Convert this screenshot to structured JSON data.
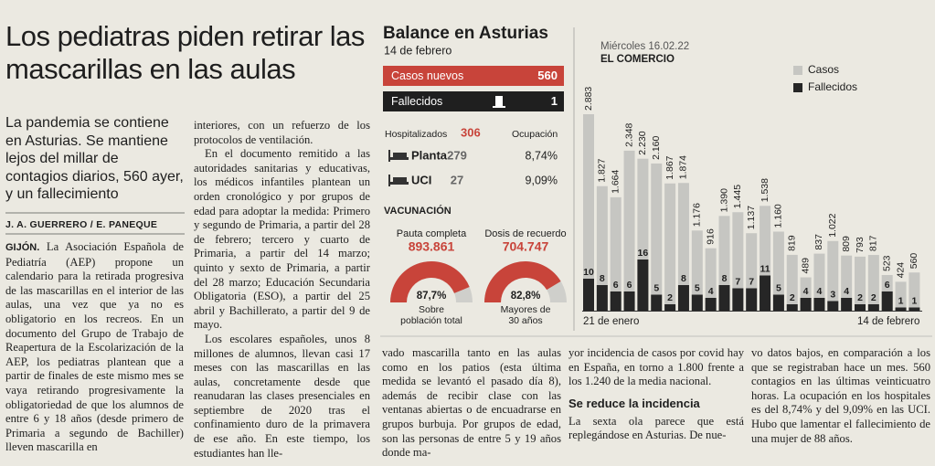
{
  "masthead": {
    "date": "Miércoles 16.02.22",
    "paper": "EL COMERCIO"
  },
  "article": {
    "headline": "Los pediatras piden retirar las mascarillas en las aulas",
    "subhead": "La pandemia se contiene en Asturias. Se mantiene lejos del millar de contagios diarios, 560 ayer, y un fallecimiento",
    "byline": "J. A. GUERRERO / E. PANEQUE",
    "columns": [
      [
        {
          "lead": "GIJÓN.",
          "p": "La Asociación Española de Pediatría (AEP) propone un calendario para la retirada progresiva de las mascarillas en el interior de las aulas, una vez que ya no es obligatorio en los recreos. En un documento del Grupo de Trabajo de Reapertura de la Escolarización de la AEP, los pediatras plantean que a partir de finales de este mismo mes se vaya retirando progresivamente la obligatoriedad de que los alumnos de entre 6 y 18 años (desde primero de Primaria a segundo de Bachiller) lleven mascarilla en"
        }
      ],
      [
        {
          "p": "interiores, con un refuerzo de los protocolos de ventilación."
        },
        {
          "p": "En el documento remitido a las autoridades sanitarias y educativas, los médicos infantiles plantean un orden cronológico y por grupos de edad para adoptar la medida: Primero y segundo de Primaria, a partir del 28 de febrero; tercero y cuarto de Primaria, a partir del 14 marzo; quinto y sexto de Primaria, a partir del 28 marzo; Educación Secundaria Obligatoria (ESO), a partir del 25 abril y Bachillerato, a partir del 9 de mayo."
        },
        {
          "p": "Los escolares españoles, unos 8 millones de alumnos, llevan casi 17 meses con las mascarillas en las aulas, concretamente desde que reanudaran las clases presenciales en septiembre de 2020 tras el confinamiento duro de la primavera de ese año. En este tiempo, los estudiantes han lle-"
        }
      ],
      [
        {
          "p": "vado mascarilla tanto en las aulas como en los patios (esta última medida se levantó el pasado día 8), además de recibir clase con las ventanas abiertas o de encuadrarse en grupos burbuja. Por grupos de edad, son las personas de entre 5 y 19 años donde ma-"
        }
      ],
      [
        {
          "p": "yor incidencia de casos por covid hay en España, en torno a 1.800 frente a los 1.240 de la media nacional."
        },
        {
          "h": "Se reduce la incidencia"
        },
        {
          "p": "La sexta ola parece que está replegándose en Asturias. De nue-"
        }
      ],
      [
        {
          "p": "vo datos bajos, en comparación a los que se registraban hace un mes. 560 contagios en las últimas veinticuatro horas. La ocupación en los hospitales es del 8,74% y del 9,09% en las UCI. Hubo que lamentar el fallecimiento de una mujer de 88 años."
        }
      ]
    ]
  },
  "infographic": {
    "title": "Balance en Asturias",
    "date": "14 de febrero",
    "new_cases": {
      "label": "Casos nuevos",
      "value": "560"
    },
    "deaths": {
      "label": "Fallecidos",
      "value": "1"
    },
    "hospital": {
      "label": "Hospitalizados",
      "value": "306",
      "occupancy_label": "Ocupación",
      "rows": [
        {
          "label": "Planta",
          "value": "279",
          "occupancy": "8,74%"
        },
        {
          "label": "UCI",
          "value": "27",
          "occupancy": "9,09%"
        }
      ]
    },
    "vaccination": {
      "title": "VACUNACIÓN",
      "items": [
        {
          "label": "Pauta completa",
          "value": "893.861",
          "percent": 87.7,
          "percent_label": "87,7%",
          "caption": "Sobre población total"
        },
        {
          "label": "Dosis de recuerdo",
          "value": "704.747",
          "percent": 82.8,
          "percent_label": "82,8%",
          "caption": "Mayores de 30 años"
        }
      ]
    }
  },
  "chart_data": {
    "type": "bar",
    "categories": [
      "21 de enero",
      null,
      null,
      null,
      null,
      null,
      null,
      null,
      null,
      null,
      null,
      null,
      null,
      null,
      null,
      null,
      null,
      null,
      null,
      null,
      null,
      null,
      null,
      null,
      "14 de febrero"
    ],
    "series": [
      {
        "name": "Casos",
        "color": "#c6c6c2",
        "values": [
          2883,
          1827,
          1664,
          2348,
          2230,
          2160,
          1867,
          1874,
          1176,
          916,
          1390,
          1445,
          1137,
          1538,
          1160,
          819,
          489,
          837,
          1022,
          809,
          793,
          817,
          523,
          424,
          560
        ],
        "value_labels": [
          "2.883",
          "1.827",
          "1.664",
          "2.348",
          "2.230",
          "2.160",
          "1.867",
          "1.874",
          "1.176",
          "916",
          "1.390",
          "1.445",
          "1.137",
          "1.538",
          "1.160",
          "819",
          "489",
          "837",
          "1.022",
          "809",
          "793",
          "817",
          "523",
          "424",
          "560"
        ]
      },
      {
        "name": "Fallecidos",
        "color": "#262626",
        "values": [
          10,
          8,
          6,
          6,
          16,
          5,
          2,
          8,
          5,
          4,
          8,
          7,
          7,
          11,
          5,
          2,
          4,
          4,
          3,
          4,
          2,
          2,
          6,
          1,
          1
        ]
      }
    ],
    "legend": "upper right"
  }
}
